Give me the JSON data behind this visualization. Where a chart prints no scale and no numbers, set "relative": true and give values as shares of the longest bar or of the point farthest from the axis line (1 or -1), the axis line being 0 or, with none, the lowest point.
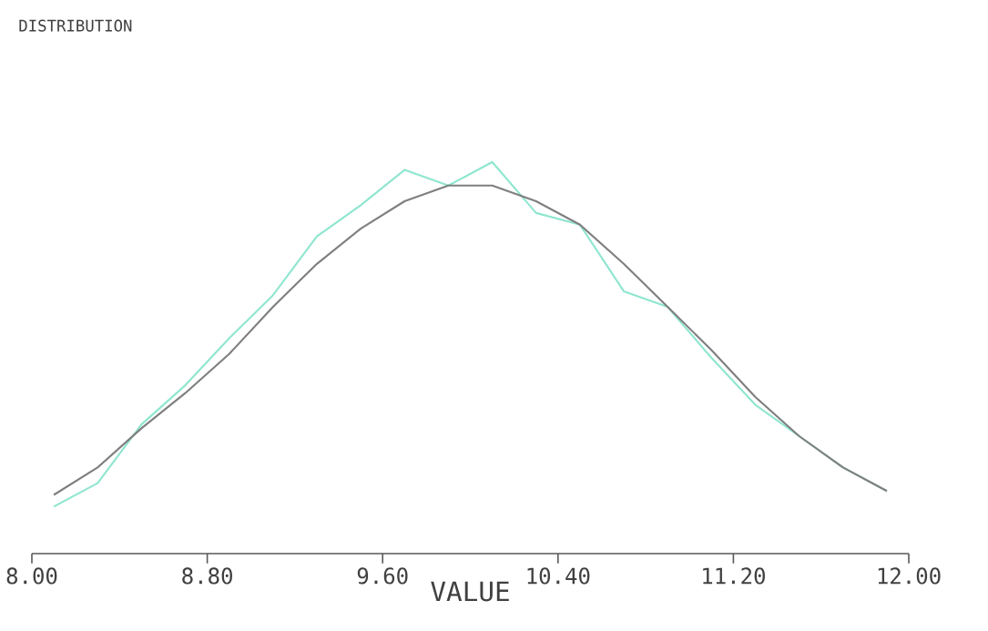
{
  "chart_data": {
    "type": "line",
    "title": "DISTRIBUTION",
    "xlabel": "VALUE",
    "relative": true,
    "xlim": [
      8,
      12
    ],
    "xticks": [
      {
        "value": 8,
        "label": "8.00"
      },
      {
        "value": 8.8,
        "label": "8.80"
      },
      {
        "value": 9.6,
        "label": "9.60"
      },
      {
        "value": 10.4,
        "label": "10.40"
      },
      {
        "value": 11.2,
        "label": "11.20"
      },
      {
        "value": 12,
        "label": "12.00"
      }
    ],
    "x": [
      8.1,
      8.3,
      8.5,
      8.7,
      8.9,
      9.1,
      9.3,
      9.5,
      9.7,
      9.9,
      10.1,
      10.3,
      10.5,
      10.7,
      10.9,
      11.1,
      11.3,
      11.5,
      11.7,
      11.9
    ],
    "series": [
      {
        "color": "#8fe6d0",
        "values": [
          0.12,
          0.18,
          0.33,
          0.43,
          0.55,
          0.66,
          0.81,
          0.89,
          0.98,
          0.94,
          1.0,
          0.87,
          0.84,
          0.67,
          0.63,
          0.5,
          0.38,
          0.3,
          0.22,
          0.16
        ]
      },
      {
        "color": "#7f7f7f",
        "values": [
          0.15,
          0.22,
          0.32,
          0.41,
          0.51,
          0.63,
          0.74,
          0.83,
          0.9,
          0.94,
          0.94,
          0.9,
          0.84,
          0.74,
          0.63,
          0.52,
          0.4,
          0.3,
          0.22,
          0.16
        ]
      }
    ],
    "marker": "none",
    "line_style": "solid"
  }
}
